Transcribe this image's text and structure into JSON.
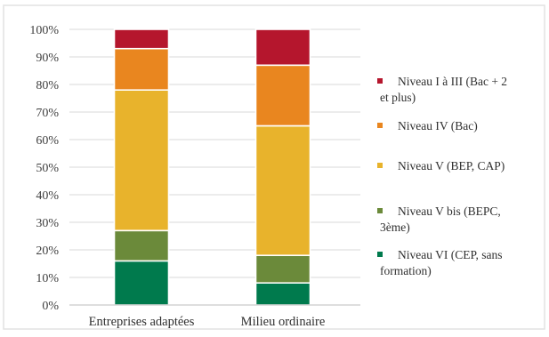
{
  "chart_data": {
    "type": "bar",
    "stacked": true,
    "categories": [
      "Entreprises adaptées",
      "Milieu ordinaire"
    ],
    "series": [
      {
        "name": "Niveau VI (CEP, sans formation)",
        "values": [
          16,
          8
        ],
        "color": "#007a4d"
      },
      {
        "name": "Niveau V bis (BEPC, 3ème)",
        "values": [
          11,
          10
        ],
        "color": "#6b8a3a"
      },
      {
        "name": "Niveau V (BEP, CAP)",
        "values": [
          51,
          47
        ],
        "color": "#e8b32c"
      },
      {
        "name": "Niveau IV (Bac)",
        "values": [
          15,
          22
        ],
        "color": "#e9861f"
      },
      {
        "name": "Niveau I à III (Bac + 2 et plus)",
        "values": [
          7,
          13
        ],
        "color": "#b5162d"
      }
    ],
    "ylim": [
      0,
      100
    ],
    "yticks": [
      "0%",
      "10%",
      "20%",
      "30%",
      "40%",
      "50%",
      "60%",
      "70%",
      "80%",
      "90%",
      "100%"
    ],
    "grid": true,
    "legend_position": "right",
    "legend": [
      {
        "lines": [
          "Niveau I à III (Bac + 2",
          "et plus)"
        ],
        "color": "#b5162d"
      },
      {
        "lines": [
          "Niveau IV (Bac)"
        ],
        "color": "#e9861f"
      },
      {
        "lines": [
          "Niveau V (BEP, CAP)"
        ],
        "color": "#e8b32c"
      },
      {
        "lines": [
          "Niveau V bis (BEPC,",
          "3ème)"
        ],
        "color": "#6b8a3a"
      },
      {
        "lines": [
          "Niveau VI (CEP, sans",
          "formation)"
        ],
        "color": "#007a4d"
      }
    ]
  }
}
